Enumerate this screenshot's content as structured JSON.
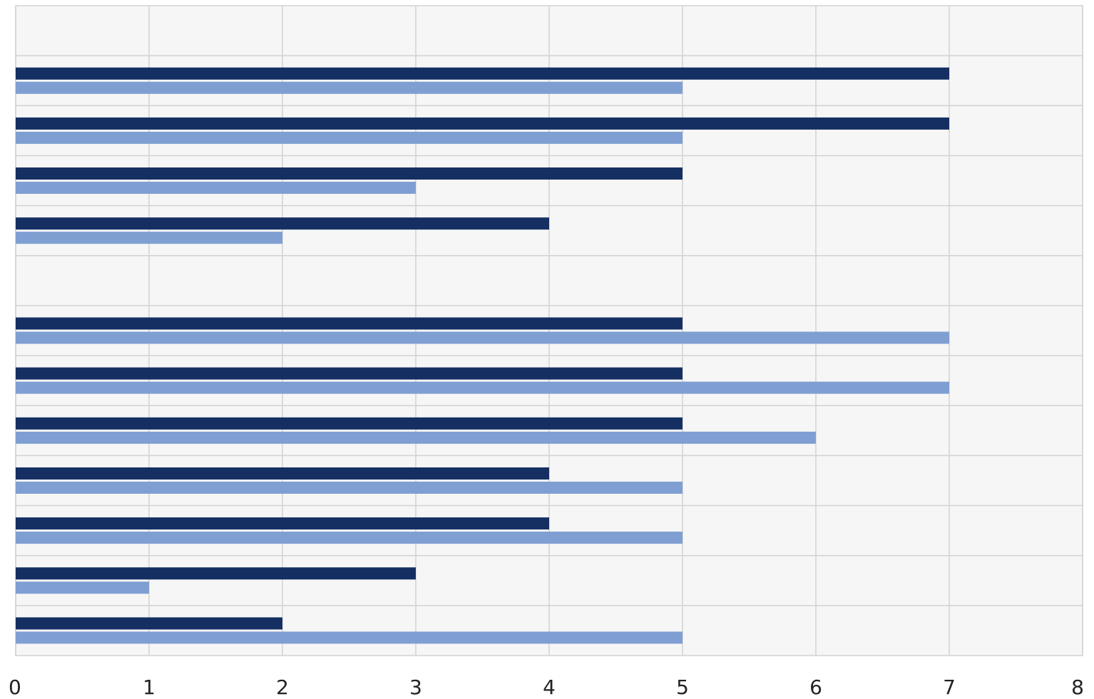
{
  "chart_data": {
    "type": "bar",
    "orientation": "horizontal",
    "title": "",
    "xlabel": "",
    "ylabel": "",
    "xlim": [
      0,
      8
    ],
    "x_ticks": [
      "0",
      "1",
      "2",
      "3",
      "4",
      "5",
      "6",
      "7",
      "8"
    ],
    "grid": true,
    "categories": [
      "",
      "",
      "",
      "",
      "",
      "",
      "",
      "",
      "",
      "",
      "",
      "",
      ""
    ],
    "series": [
      {
        "color": "#152f63",
        "values": [
          null,
          7,
          7,
          5,
          4,
          null,
          5,
          5,
          5,
          4,
          4,
          3,
          2
        ]
      },
      {
        "color": "#7f9fd2",
        "values": [
          null,
          5,
          5,
          3,
          2,
          null,
          7,
          7,
          6,
          5,
          5,
          1,
          5
        ]
      }
    ],
    "colors": {
      "plot_background": "#f6f6f6",
      "grid": "#d2d2d2"
    }
  }
}
